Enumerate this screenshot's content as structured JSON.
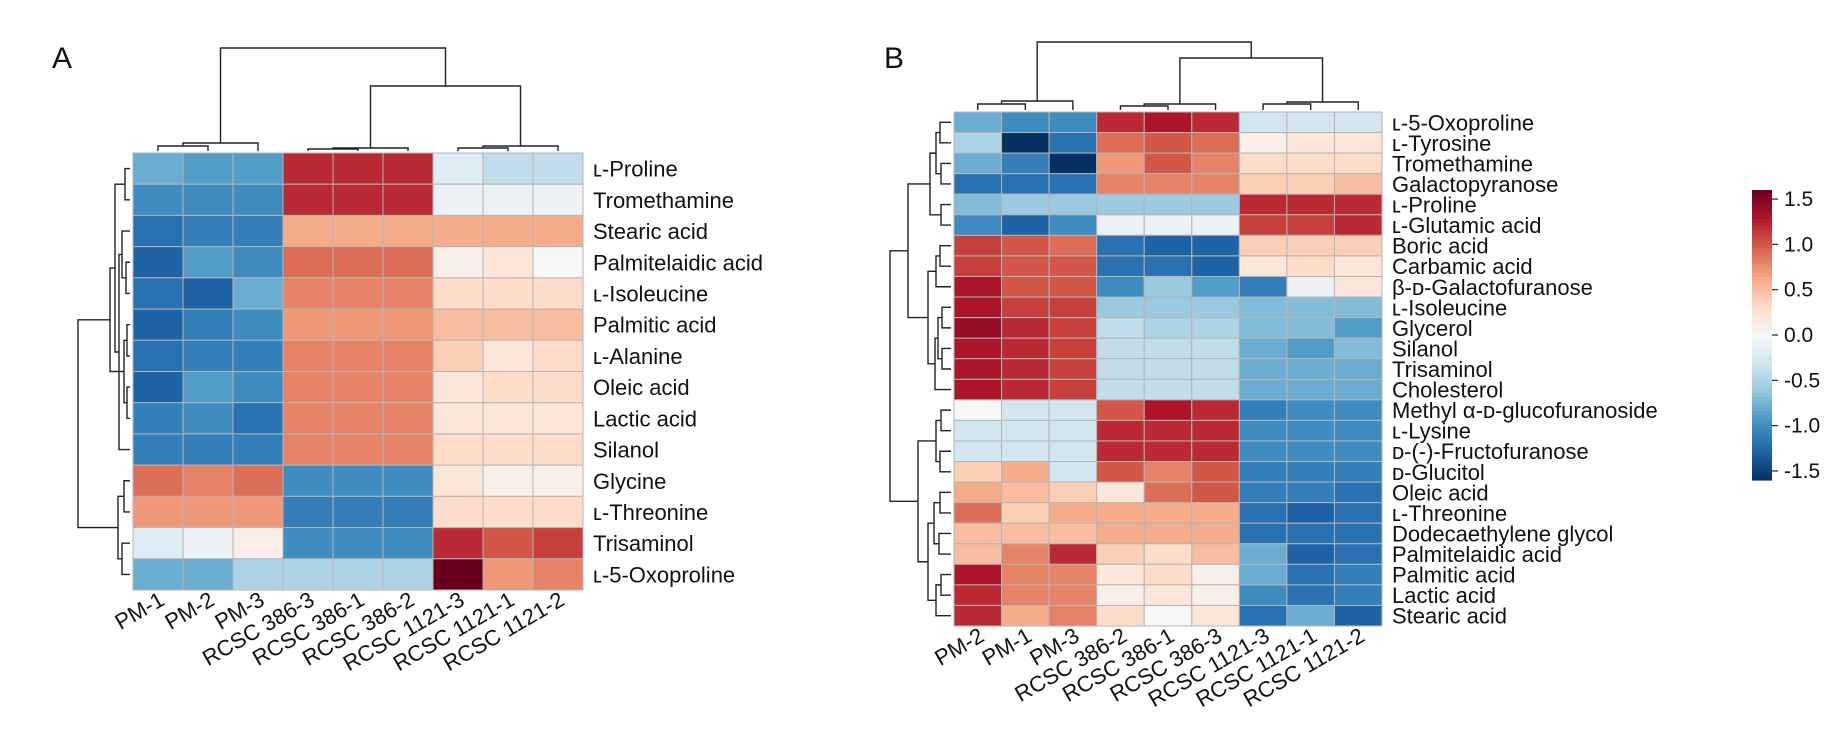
{
  "colors": {
    "scale": [
      "#053061",
      "#2166ac",
      "#4393c3",
      "#92c5de",
      "#d1e5f0",
      "#f7f7f7",
      "#fddbc7",
      "#f4a582",
      "#d6604d",
      "#b2182b",
      "#67001f"
    ],
    "grid": "#b5b5b5",
    "dendrogram": "#222222"
  },
  "chart_data": [
    {
      "type": "heatmap",
      "panel": "A",
      "rows": [
        "ʟ-Proline",
        "Tromethamine",
        "Stearic acid",
        "Palmitelaidic acid",
        "ʟ-Isoleucine",
        "Palmitic acid",
        "ʟ-Alanine",
        "Oleic acid",
        "Lactic acid",
        "Silanol",
        "Glycine",
        "ʟ-Threonine",
        "Trisaminol",
        "ʟ-5-Oxoproline"
      ],
      "columns": [
        "PM-1",
        "PM-2",
        "PM-3",
        "RCSC 386-3",
        "RCSC 386-1",
        "RCSC 386-2",
        "RCSC 1121-3",
        "RCSC 1121-1",
        "RCSC 1121-2"
      ],
      "values": [
        [
          -0.8,
          -0.9,
          -0.9,
          1.2,
          1.2,
          1.2,
          -0.2,
          -0.4,
          -0.4
        ],
        [
          -1.0,
          -1.0,
          -1.0,
          1.2,
          1.2,
          1.2,
          -0.1,
          -0.1,
          -0.1
        ],
        [
          -1.2,
          -1.1,
          -1.1,
          0.6,
          0.6,
          0.6,
          0.6,
          0.6,
          0.6
        ],
        [
          -1.3,
          -0.9,
          -1.0,
          0.9,
          0.9,
          0.9,
          0.1,
          0.2,
          0.0
        ],
        [
          -1.2,
          -1.3,
          -0.8,
          0.8,
          0.8,
          0.8,
          0.3,
          0.3,
          0.3
        ],
        [
          -1.3,
          -1.1,
          -1.0,
          0.7,
          0.7,
          0.7,
          0.5,
          0.5,
          0.5
        ],
        [
          -1.2,
          -1.1,
          -1.1,
          0.8,
          0.8,
          0.8,
          0.4,
          0.2,
          0.3
        ],
        [
          -1.3,
          -0.9,
          -1.0,
          0.8,
          0.8,
          0.8,
          0.2,
          0.3,
          0.3
        ],
        [
          -1.1,
          -1.0,
          -1.2,
          0.8,
          0.8,
          0.8,
          0.2,
          0.2,
          0.2
        ],
        [
          -1.1,
          -1.1,
          -1.1,
          0.8,
          0.8,
          0.8,
          0.3,
          0.3,
          0.3
        ],
        [
          0.9,
          0.8,
          0.9,
          -1.0,
          -1.0,
          -1.0,
          0.2,
          0.1,
          0.1
        ],
        [
          0.7,
          0.7,
          0.7,
          -1.1,
          -1.1,
          -1.1,
          0.3,
          0.3,
          0.3
        ],
        [
          -0.2,
          -0.1,
          0.1,
          -1.0,
          -1.0,
          -1.0,
          1.2,
          1.0,
          1.1
        ],
        [
          -0.8,
          -0.8,
          -0.5,
          -0.5,
          -0.5,
          -0.5,
          1.6,
          0.7,
          0.8
        ]
      ]
    },
    {
      "type": "heatmap",
      "panel": "B",
      "rows": [
        "ʟ-5-Oxoproline",
        "ʟ-Tyrosine",
        "Tromethamine",
        "Galactopyranose",
        "ʟ-Proline",
        "ʟ-Glutamic acid",
        "Boric acid",
        "Carbamic acid",
        "β-ᴅ-Galactofuranose",
        "ʟ-Isoleucine",
        "Glycerol",
        "Silanol",
        "Trisaminol",
        "Cholesterol",
        "Methyl α-ᴅ-glucofuranoside",
        "ʟ-Lysine",
        "ᴅ-(-)-Fructofuranose",
        "ᴅ-Glucitol",
        "Oleic acid",
        "ʟ-Threonine",
        "Dodecaethylene glycol",
        "Palmitelaidic acid",
        "Palmitic acid",
        "Lactic acid",
        "Stearic acid"
      ],
      "columns": [
        "PM-2",
        "PM-1",
        "PM-3",
        "RCSC 386-2",
        "RCSC 386-1",
        "RCSC 386-3",
        "RCSC 1121-3",
        "RCSC 1121-1",
        "RCSC 1121-2"
      ],
      "values": [
        [
          -0.8,
          -1.0,
          -1.0,
          1.2,
          1.3,
          1.2,
          -0.3,
          -0.3,
          -0.3
        ],
        [
          -0.5,
          -1.6,
          -1.2,
          0.9,
          1.0,
          0.9,
          0.1,
          0.2,
          0.2
        ],
        [
          -0.8,
          -1.1,
          -1.6,
          0.7,
          1.0,
          0.8,
          0.3,
          0.3,
          0.3
        ],
        [
          -1.2,
          -1.2,
          -1.2,
          0.8,
          0.8,
          0.8,
          0.4,
          0.4,
          0.5
        ],
        [
          -0.7,
          -0.6,
          -0.6,
          -0.6,
          -0.6,
          -0.6,
          1.2,
          1.2,
          1.2
        ],
        [
          -1.0,
          -1.3,
          -1.0,
          -0.1,
          -0.1,
          -0.1,
          1.1,
          1.1,
          1.2
        ],
        [
          1.1,
          1.0,
          0.9,
          -1.2,
          -1.3,
          -1.3,
          0.4,
          0.4,
          0.4
        ],
        [
          1.1,
          1.0,
          1.0,
          -1.2,
          -1.2,
          -1.3,
          0.2,
          0.3,
          0.2
        ],
        [
          1.3,
          1.0,
          1.0,
          -1.0,
          -0.6,
          -0.9,
          -1.1,
          -0.1,
          0.2
        ],
        [
          1.3,
          1.1,
          1.1,
          -0.6,
          -0.6,
          -0.6,
          -0.7,
          -0.7,
          -0.7
        ],
        [
          1.4,
          1.2,
          1.1,
          -0.4,
          -0.5,
          -0.5,
          -0.7,
          -0.7,
          -0.9
        ],
        [
          1.3,
          1.2,
          1.1,
          -0.4,
          -0.4,
          -0.4,
          -0.8,
          -0.9,
          -0.7
        ],
        [
          1.3,
          1.2,
          1.1,
          -0.4,
          -0.4,
          -0.4,
          -0.8,
          -0.8,
          -0.8
        ],
        [
          1.3,
          1.2,
          1.1,
          -0.4,
          -0.4,
          -0.4,
          -0.8,
          -0.8,
          -0.8
        ],
        [
          0.0,
          -0.3,
          -0.3,
          1.0,
          1.3,
          1.2,
          -1.1,
          -1.0,
          -1.0
        ],
        [
          -0.3,
          -0.3,
          -0.3,
          1.2,
          1.2,
          1.2,
          -1.0,
          -1.0,
          -1.0
        ],
        [
          -0.3,
          -0.3,
          -0.3,
          1.2,
          1.2,
          1.2,
          -1.0,
          -1.0,
          -1.0
        ],
        [
          0.4,
          0.6,
          -0.3,
          1.0,
          0.8,
          1.0,
          -1.1,
          -1.1,
          -1.1
        ],
        [
          0.6,
          0.5,
          0.4,
          0.2,
          0.9,
          1.0,
          -1.1,
          -1.1,
          -1.2
        ],
        [
          0.9,
          0.4,
          0.6,
          0.6,
          0.6,
          0.6,
          -1.2,
          -1.3,
          -1.2
        ],
        [
          0.5,
          0.5,
          0.5,
          0.6,
          0.6,
          0.6,
          -1.2,
          -1.2,
          -1.2
        ],
        [
          0.5,
          0.8,
          1.2,
          0.4,
          0.3,
          0.5,
          -0.8,
          -1.3,
          -1.2
        ],
        [
          1.3,
          0.8,
          0.8,
          0.2,
          0.3,
          0.1,
          -0.8,
          -1.2,
          -1.1
        ],
        [
          1.2,
          0.8,
          0.8,
          0.1,
          0.2,
          0.1,
          -1.0,
          -1.2,
          -1.1
        ],
        [
          1.2,
          0.6,
          0.8,
          0.3,
          0.0,
          0.2,
          -1.2,
          -0.8,
          -1.3
        ]
      ],
      "colorbar": {
        "ticks": [
          "1.5",
          "1.0",
          "0.5",
          "0.0",
          "-0.5",
          "-1.0",
          "-1.5"
        ],
        "range": [
          -1.6,
          1.6
        ]
      }
    }
  ],
  "panels": {
    "a_label": "A",
    "b_label": "B"
  }
}
